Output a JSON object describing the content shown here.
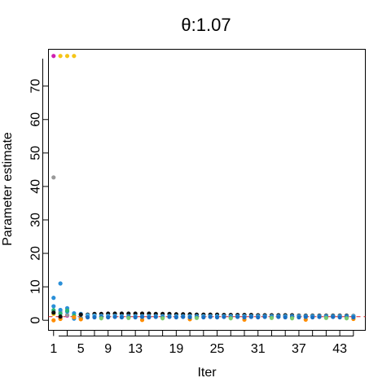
{
  "chart_data": {
    "type": "scatter",
    "title": "θ:1.07",
    "xlabel": "Iter",
    "ylabel": "Parameter estimate",
    "xlim": [
      0.25,
      46.75
    ],
    "ylim": [
      -3,
      81
    ],
    "x_ticks": [
      1,
      3,
      5,
      7,
      9,
      11,
      13,
      15,
      17,
      19,
      21,
      23,
      25,
      27,
      29,
      31,
      33,
      35,
      37,
      39,
      41,
      43,
      45
    ],
    "x_tick_labels": [
      "1",
      "",
      "5",
      "",
      "9",
      "",
      "13",
      "",
      "",
      "19",
      "",
      "",
      "25",
      "",
      "",
      "31",
      "",
      "",
      "37",
      "",
      "",
      "43",
      ""
    ],
    "y_ticks": [
      0,
      10,
      20,
      30,
      40,
      50,
      60,
      70
    ],
    "y_tick_labels": [
      "0",
      "10",
      "20",
      "30",
      "40",
      "50",
      "60",
      "70"
    ],
    "reference_line": {
      "y": 1.07,
      "color": "#e02020",
      "style": "dashed"
    },
    "grid": false,
    "iter_range": [
      1,
      45
    ],
    "series": [
      {
        "color": "#d020b0",
        "points": [
          [
            1,
            79
          ],
          [
            2,
            0.9
          ],
          [
            3,
            1.4
          ]
        ]
      },
      {
        "color": "#f5c518",
        "points": [
          [
            2,
            79
          ],
          [
            3,
            79
          ],
          [
            4,
            79
          ],
          [
            1,
            1.9
          ],
          [
            5,
            0.7
          ]
        ]
      },
      {
        "color": "#999999",
        "points": [
          [
            1,
            42.7
          ],
          [
            2,
            2.5
          ],
          [
            3,
            1.6
          ]
        ]
      },
      {
        "color": "#2a8fd8",
        "points": [
          [
            1,
            6.7
          ],
          [
            2,
            11
          ],
          [
            3,
            3.6
          ],
          [
            1,
            4.2
          ],
          [
            2,
            3.1
          ],
          [
            3,
            2.6
          ],
          [
            4,
            2.1
          ],
          [
            5,
            1.9
          ],
          [
            4,
            0.5
          ],
          [
            5,
            0.6
          ]
        ]
      },
      {
        "color": "#2bb673",
        "points": [
          [
            1,
            3.0
          ],
          [
            2,
            2.0
          ],
          [
            3,
            2.9
          ],
          [
            4,
            1.4
          ]
        ]
      },
      {
        "color": "#ff8c00",
        "points": [
          [
            1,
            0.0
          ],
          [
            2,
            0.4
          ],
          [
            4,
            0.9
          ],
          [
            5,
            0.3
          ],
          [
            14,
            0.1
          ],
          [
            21,
            0.3
          ],
          [
            29,
            0.2
          ],
          [
            38,
            0.2
          ],
          [
            45,
            0.4
          ]
        ]
      },
      {
        "color": "#111111",
        "points": [
          [
            1,
            2.3
          ],
          [
            2,
            1.1
          ],
          [
            5,
            1.7
          ],
          [
            6,
            1.7
          ],
          [
            7,
            1.9
          ],
          [
            8,
            1.9
          ],
          [
            9,
            2.0
          ],
          [
            10,
            2.0
          ],
          [
            11,
            2.0
          ],
          [
            12,
            2.0
          ],
          [
            13,
            2.0
          ],
          [
            14,
            2.0
          ],
          [
            15,
            2.0
          ],
          [
            16,
            1.9
          ],
          [
            17,
            1.9
          ],
          [
            18,
            1.9
          ],
          [
            19,
            1.8
          ],
          [
            20,
            1.8
          ],
          [
            21,
            1.8
          ],
          [
            22,
            1.7
          ],
          [
            23,
            1.7
          ],
          [
            24,
            1.7
          ],
          [
            25,
            1.7
          ],
          [
            26,
            1.6
          ],
          [
            27,
            1.6
          ],
          [
            28,
            1.6
          ],
          [
            29,
            1.6
          ],
          [
            30,
            1.6
          ],
          [
            31,
            1.5
          ],
          [
            32,
            1.5
          ],
          [
            33,
            1.5
          ],
          [
            34,
            1.5
          ],
          [
            35,
            1.5
          ],
          [
            36,
            1.5
          ],
          [
            37,
            1.4
          ],
          [
            38,
            1.4
          ],
          [
            39,
            1.4
          ],
          [
            40,
            1.4
          ],
          [
            41,
            1.4
          ],
          [
            42,
            1.4
          ],
          [
            43,
            1.4
          ],
          [
            44,
            1.4
          ],
          [
            45,
            1.3
          ]
        ]
      },
      {
        "color": "#4ab0e8",
        "points": [
          [
            6,
            1.5
          ],
          [
            7,
            1.4
          ],
          [
            8,
            1.3
          ],
          [
            9,
            1.3
          ],
          [
            10,
            1.3
          ],
          [
            11,
            1.2
          ],
          [
            12,
            1.2
          ],
          [
            13,
            1.2
          ],
          [
            14,
            1.2
          ],
          [
            15,
            1.2
          ],
          [
            16,
            1.2
          ],
          [
            17,
            1.2
          ],
          [
            18,
            1.2
          ],
          [
            19,
            1.2
          ],
          [
            20,
            1.2
          ],
          [
            21,
            1.2
          ],
          [
            22,
            1.2
          ],
          [
            23,
            1.2
          ],
          [
            24,
            1.2
          ],
          [
            25,
            1.2
          ],
          [
            26,
            1.2
          ],
          [
            27,
            1.2
          ],
          [
            28,
            1.2
          ],
          [
            29,
            1.2
          ],
          [
            30,
            1.2
          ],
          [
            31,
            1.2
          ],
          [
            32,
            1.2
          ],
          [
            33,
            1.2
          ],
          [
            34,
            1.2
          ],
          [
            35,
            1.2
          ],
          [
            36,
            1.2
          ],
          [
            37,
            1.2
          ],
          [
            38,
            1.2
          ],
          [
            39,
            1.2
          ],
          [
            40,
            1.2
          ],
          [
            41,
            1.2
          ],
          [
            42,
            1.2
          ],
          [
            43,
            1.2
          ],
          [
            44,
            1.2
          ],
          [
            45,
            1.2
          ]
        ]
      },
      {
        "color": "#1a6fc0",
        "points": [
          [
            6,
            0.9
          ],
          [
            7,
            0.9
          ],
          [
            8,
            1.0
          ],
          [
            9,
            0.9
          ],
          [
            10,
            1.0
          ],
          [
            11,
            0.9
          ],
          [
            12,
            1.0
          ],
          [
            13,
            0.9
          ],
          [
            14,
            1.0
          ],
          [
            15,
            0.9
          ],
          [
            16,
            1.0
          ],
          [
            17,
            0.9
          ],
          [
            18,
            1.0
          ],
          [
            19,
            0.9
          ],
          [
            20,
            1.0
          ],
          [
            21,
            0.9
          ],
          [
            22,
            1.0
          ],
          [
            23,
            0.9
          ],
          [
            24,
            1.0
          ],
          [
            25,
            0.9
          ],
          [
            26,
            1.0
          ],
          [
            27,
            0.9
          ],
          [
            28,
            1.0
          ],
          [
            29,
            0.9
          ],
          [
            30,
            1.0
          ],
          [
            31,
            0.9
          ],
          [
            32,
            1.0
          ],
          [
            33,
            0.9
          ],
          [
            34,
            1.0
          ],
          [
            35,
            0.9
          ],
          [
            36,
            1.0
          ],
          [
            37,
            0.9
          ],
          [
            38,
            1.0
          ],
          [
            39,
            0.9
          ],
          [
            40,
            1.0
          ],
          [
            41,
            0.9
          ],
          [
            42,
            1.0
          ],
          [
            43,
            0.9
          ],
          [
            44,
            1.0
          ],
          [
            45,
            0.9
          ]
        ]
      },
      {
        "color": "#7bc96f",
        "points": [
          [
            8,
            0.6
          ],
          [
            12,
            0.7
          ],
          [
            17,
            0.6
          ],
          [
            22,
            0.7
          ],
          [
            27,
            0.6
          ],
          [
            33,
            0.7
          ],
          [
            36,
            0.6
          ],
          [
            41,
            0.7
          ],
          [
            44,
            0.6
          ]
        ]
      }
    ]
  }
}
